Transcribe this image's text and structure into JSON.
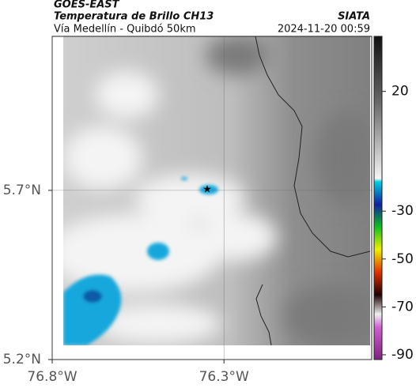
{
  "header": {
    "title": "GOES-EAST",
    "subtitle": "Temperatura de Brillo CH13",
    "location": "Vía Medellín - Quibdó 50km",
    "source": "SIATA",
    "timestamp": "2024-11-20 00:59"
  },
  "map": {
    "lat_range": [
      5.2,
      6.155
    ],
    "lon_range": [
      76.8,
      75.87
    ],
    "lat_ticks": [
      {
        "value": 5.7,
        "label": "5.7°N"
      },
      {
        "value": 5.2,
        "label": "5.2°N"
      }
    ],
    "lon_ticks": [
      {
        "value": 76.8,
        "label": "76.8°W"
      },
      {
        "value": 76.3,
        "label": "76.3°W"
      }
    ]
  },
  "colorbar": {
    "range": [
      43,
      -92
    ],
    "ticks": [
      20,
      -30,
      -50,
      -70,
      -90
    ]
  }
}
